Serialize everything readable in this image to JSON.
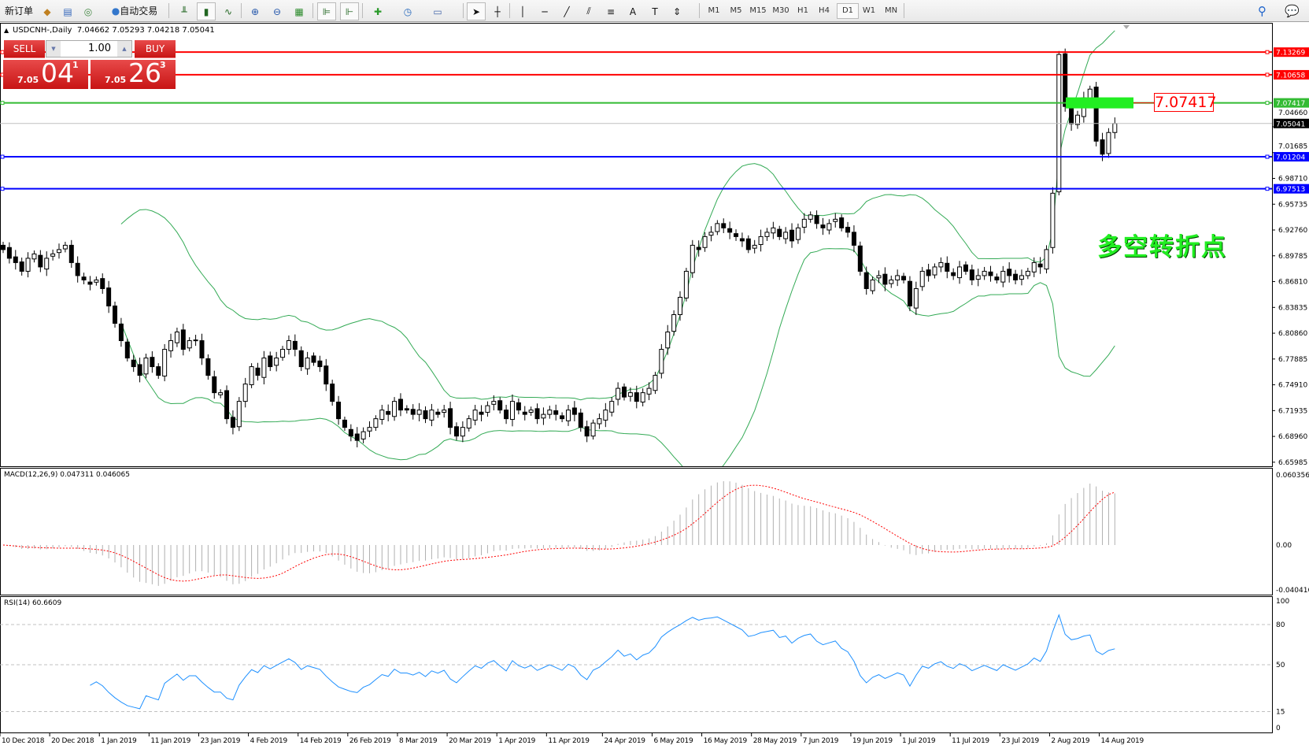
{
  "toolbar": {
    "new_order": "新订单",
    "auto_trading": "自动交易",
    "timeframes": [
      "M1",
      "M5",
      "M15",
      "M30",
      "H1",
      "H4",
      "D1",
      "W1",
      "MN"
    ],
    "active_timeframe": "D1",
    "icons": [
      "new-order-icon",
      "history-icon",
      "server-icon",
      "signal-icon",
      "auto-trading-icon",
      "bar-chart-icon",
      "candlestick-icon",
      "line-chart-icon",
      "zoom-in-icon",
      "zoom-out-icon",
      "tile-windows-icon",
      "chart-shift-icon",
      "autoscroll-icon",
      "indicators-icon",
      "periods-icon",
      "templates-icon",
      "cursor-icon",
      "crosshair-icon",
      "vertical-line-icon",
      "horizontal-line-icon",
      "trendline-icon",
      "equidistant-channel-icon",
      "fibonacci-icon",
      "text-icon",
      "text-label-icon",
      "arrows-icon",
      "search-icon",
      "chat-icon"
    ]
  },
  "chart": {
    "symbol_title": "USDCNH-,Daily",
    "ohlc_readout": "7.04662 7.05293 7.04218 7.05041",
    "one_click": {
      "sell_label": "SELL",
      "buy_label": "BUY",
      "lot": "1.00",
      "sell_price": {
        "prefix": "7.05",
        "big": "04",
        "sup": "1"
      },
      "buy_price": {
        "prefix": "7.05",
        "big": "26",
        "sup": "3"
      },
      "color": "#d42020"
    },
    "annotation_price": "7.07417",
    "annotation_text": "多空转折点",
    "macd_label": "MACD(12,26,9) 0.047311 0.046065",
    "rsi_label": "RSI(14) 60.6609"
  },
  "chart_data": {
    "type": "candlestick",
    "start_date": "2018-12-10",
    "closes": [
      6.905,
      6.895,
      6.89,
      6.88,
      6.895,
      6.9,
      6.885,
      6.895,
      6.9,
      6.905,
      6.91,
      6.89,
      6.875,
      6.87,
      6.865,
      6.87,
      6.86,
      6.84,
      6.82,
      6.8,
      6.78,
      6.77,
      6.76,
      6.78,
      6.77,
      6.76,
      6.79,
      6.8,
      6.81,
      6.79,
      6.8,
      6.8,
      6.78,
      6.76,
      6.74,
      6.74,
      6.71,
      6.7,
      6.73,
      6.75,
      6.77,
      6.76,
      6.78,
      6.77,
      6.78,
      6.79,
      6.8,
      6.79,
      6.77,
      6.78,
      6.775,
      6.77,
      6.75,
      6.73,
      6.71,
      6.7,
      6.69,
      6.685,
      6.695,
      6.7,
      6.71,
      6.72,
      6.715,
      6.73,
      6.72,
      6.72,
      6.715,
      6.72,
      6.71,
      6.72,
      6.715,
      6.72,
      6.7,
      6.69,
      6.7,
      6.71,
      6.72,
      6.715,
      6.725,
      6.73,
      6.72,
      6.71,
      6.73,
      6.72,
      6.715,
      6.72,
      6.71,
      6.715,
      6.72,
      6.715,
      6.71,
      6.72,
      6.715,
      6.7,
      6.69,
      6.705,
      6.71,
      6.72,
      6.73,
      6.745,
      6.735,
      6.74,
      6.73,
      6.74,
      6.745,
      6.76,
      6.79,
      6.81,
      6.83,
      6.85,
      6.88,
      6.91,
      6.905,
      6.92,
      6.925,
      6.935,
      6.93,
      6.925,
      6.92,
      6.915,
      6.905,
      6.91,
      6.92,
      6.925,
      6.93,
      6.92,
      6.925,
      6.915,
      6.93,
      6.94,
      6.945,
      6.935,
      6.93,
      6.935,
      6.94,
      6.93,
      6.925,
      6.91,
      6.88,
      6.86,
      6.87,
      6.875,
      6.865,
      6.87,
      6.875,
      6.87,
      6.84,
      6.86,
      6.88,
      6.875,
      6.885,
      6.89,
      6.88,
      6.875,
      6.885,
      6.88,
      6.87,
      6.875,
      6.88,
      6.875,
      6.87,
      6.88,
      6.875,
      6.87,
      6.875,
      6.88,
      6.89,
      6.885,
      6.905,
      6.97,
      7.13,
      7.07,
      7.05,
      7.06,
      7.08,
      7.09,
      7.03,
      7.015,
      7.04,
      7.05041
    ],
    "price_ticks": [
      "6.65985",
      "6.68960",
      "6.71935",
      "6.74910",
      "6.77885",
      "6.80860",
      "6.83835",
      "6.86810",
      "6.89785",
      "6.92760",
      "6.95735",
      "6.98710",
      "7.01685",
      "7.04660"
    ],
    "price_range": [
      6.65985,
      7.16
    ],
    "hlines": [
      {
        "price": "7.13269",
        "color": "#ff0000"
      },
      {
        "price": "7.10658",
        "color": "#ff0000"
      },
      {
        "price": "7.07417",
        "color": "#33bb33"
      },
      {
        "price": "7.01204",
        "color": "#0000ff"
      },
      {
        "price": "6.97513",
        "color": "#0000ff"
      }
    ],
    "current_price": "7.05041",
    "date_labels": [
      "10 Dec 2018",
      "20 Dec 2018",
      "1 Jan 2019",
      "11 Jan 2019",
      "23 Jan 2019",
      "4 Feb 2019",
      "14 Feb 2019",
      "26 Feb 2019",
      "8 Mar 2019",
      "20 Mar 2019",
      "1 Apr 2019",
      "11 Apr 2019",
      "24 Apr 2019",
      "6 May 2019",
      "16 May 2019",
      "28 May 2019",
      "7 Jun 2019",
      "19 Jun 2019",
      "1 Jul 2019",
      "11 Jul 2019",
      "23 Jul 2019",
      "2 Aug 2019",
      "14 Aug 2019"
    ],
    "bollinger": {
      "period": 20,
      "deviation": 2,
      "color": "#33aa55"
    },
    "macd": {
      "fast": 12,
      "slow": 26,
      "signal": 9,
      "ticks": [
        "0.060356",
        "0.00",
        "-0.040416"
      ],
      "range": [
        -0.040416,
        0.060356
      ],
      "signal_color": "#ff0000",
      "hist_color": "#b0b0b0"
    },
    "rsi": {
      "period": 14,
      "ticks": [
        "100",
        "80",
        "50",
        "15",
        "0"
      ],
      "levels": [
        80,
        50,
        15
      ],
      "color": "#1e90ff"
    }
  }
}
